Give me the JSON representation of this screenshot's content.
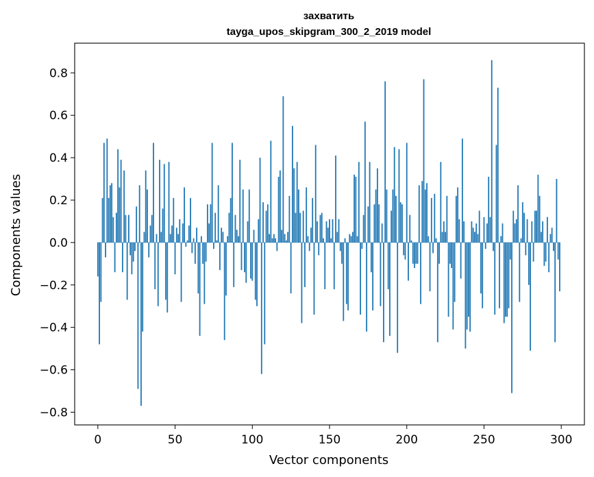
{
  "chart_data": {
    "type": "bar",
    "title": "захватить",
    "subtitle": "tayga_upos_skipgram_300_2_2019 model",
    "xlabel": "Vector components",
    "ylabel": "Components values",
    "xlim": [
      -15,
      315
    ],
    "ylim": [
      -0.86,
      0.94
    ],
    "xticks": [
      0,
      50,
      100,
      150,
      200,
      250,
      300
    ],
    "yticks": [
      -0.8,
      -0.6,
      -0.4,
      -0.2,
      0.0,
      0.2,
      0.4,
      0.6,
      0.8
    ],
    "ytick_labels": [
      "−0.8",
      "−0.6",
      "−0.4",
      "−0.2",
      "0.0",
      "0.2",
      "0.4",
      "0.6",
      "0.8"
    ],
    "bar_color": "#1f77b4",
    "x": [
      0,
      1,
      2,
      3,
      4,
      5,
      6,
      7,
      8,
      9,
      10,
      11,
      12,
      13,
      14,
      15,
      16,
      17,
      18,
      19,
      20,
      21,
      22,
      23,
      24,
      25,
      26,
      27,
      28,
      29,
      30,
      31,
      32,
      33,
      34,
      35,
      36,
      37,
      38,
      39,
      40,
      41,
      42,
      43,
      44,
      45,
      46,
      47,
      48,
      49,
      50,
      51,
      52,
      53,
      54,
      55,
      56,
      57,
      58,
      59,
      60,
      61,
      62,
      63,
      64,
      65,
      66,
      67,
      68,
      69,
      70,
      71,
      72,
      73,
      74,
      75,
      76,
      77,
      78,
      79,
      80,
      81,
      82,
      83,
      84,
      85,
      86,
      87,
      88,
      89,
      90,
      91,
      92,
      93,
      94,
      95,
      96,
      97,
      98,
      99,
      100,
      101,
      102,
      103,
      104,
      105,
      106,
      107,
      108,
      109,
      110,
      111,
      112,
      113,
      114,
      115,
      116,
      117,
      118,
      119,
      120,
      121,
      122,
      123,
      124,
      125,
      126,
      127,
      128,
      129,
      130,
      131,
      132,
      133,
      134,
      135,
      136,
      137,
      138,
      139,
      140,
      141,
      142,
      143,
      144,
      145,
      146,
      147,
      148,
      149,
      150,
      151,
      152,
      153,
      154,
      155,
      156,
      157,
      158,
      159,
      160,
      161,
      162,
      163,
      164,
      165,
      166,
      167,
      168,
      169,
      170,
      171,
      172,
      173,
      174,
      175,
      176,
      177,
      178,
      179,
      180,
      181,
      182,
      183,
      184,
      185,
      186,
      187,
      188,
      189,
      190,
      191,
      192,
      193,
      194,
      195,
      196,
      197,
      198,
      199,
      200,
      201,
      202,
      203,
      204,
      205,
      206,
      207,
      208,
      209,
      210,
      211,
      212,
      213,
      214,
      215,
      216,
      217,
      218,
      219,
      220,
      221,
      222,
      223,
      224,
      225,
      226,
      227,
      228,
      229,
      230,
      231,
      232,
      233,
      234,
      235,
      236,
      237,
      238,
      239,
      240,
      241,
      242,
      243,
      244,
      245,
      246,
      247,
      248,
      249,
      250,
      251,
      252,
      253,
      254,
      255,
      256,
      257,
      258,
      259,
      260,
      261,
      262,
      263,
      264,
      265,
      266,
      267,
      268,
      269,
      270,
      271,
      272,
      273,
      274,
      275,
      276,
      277,
      278,
      279,
      280,
      281,
      282,
      283,
      284,
      285,
      286,
      287,
      288,
      289,
      290,
      291,
      292,
      293,
      294,
      295,
      296,
      297,
      298,
      299
    ],
    "values": [
      -0.16,
      -0.48,
      -0.28,
      0.21,
      0.47,
      -0.07,
      0.49,
      0.21,
      0.27,
      0.28,
      0.12,
      -0.14,
      0.14,
      0.44,
      0.26,
      0.39,
      -0.14,
      0.34,
      0.13,
      -0.27,
      0.13,
      -0.06,
      -0.15,
      -0.09,
      -0.04,
      0.17,
      -0.69,
      0.27,
      -0.77,
      -0.42,
      0.05,
      0.34,
      0.25,
      -0.07,
      0.08,
      0.13,
      0.47,
      -0.22,
      0.04,
      -0.3,
      0.39,
      0.05,
      0.16,
      0.37,
      -0.27,
      -0.33,
      0.38,
      0.04,
      0.08,
      0.21,
      -0.15,
      0.07,
      0.04,
      0.11,
      -0.28,
      0.09,
      0.26,
      -0.02,
      0.01,
      0.08,
      0.21,
      -0.05,
      0.02,
      -0.1,
      0.07,
      -0.24,
      -0.44,
      0.03,
      -0.1,
      -0.29,
      -0.09,
      0.18,
      0.09,
      0.18,
      0.47,
      -0.03,
      0.14,
      0.01,
      0.27,
      -0.13,
      0.07,
      0.05,
      -0.46,
      -0.25,
      0.03,
      0.14,
      0.21,
      0.47,
      -0.21,
      0.13,
      0.06,
      0.03,
      0.39,
      -0.13,
      0.25,
      -0.14,
      -0.19,
      0.1,
      0.25,
      -0.17,
      -0.18,
      0.06,
      -0.27,
      -0.3,
      0.11,
      0.4,
      -0.62,
      0.19,
      -0.48,
      0.15,
      0.18,
      0.04,
      0.48,
      0.02,
      0.04,
      0.02,
      -0.04,
      0.31,
      0.34,
      0.06,
      0.69,
      0.04,
      0.01,
      0.05,
      0.22,
      -0.24,
      0.55,
      0.35,
      0.14,
      0.38,
      0.25,
      0.14,
      -0.38,
      0.15,
      -0.21,
      0.26,
      0.03,
      -0.04,
      0.07,
      0.21,
      -0.34,
      0.46,
      0.1,
      -0.06,
      0.13,
      0.14,
      0.02,
      -0.22,
      0.1,
      0.07,
      0.11,
      0.02,
      0.11,
      -0.22,
      0.41,
      0.05,
      0.11,
      -0.04,
      -0.1,
      -0.37,
      0.02,
      -0.29,
      -0.32,
      0.04,
      0.03,
      0.05,
      0.32,
      0.31,
      0.03,
      0.38,
      -0.34,
      -0.03,
      0.13,
      0.57,
      -0.42,
      0.17,
      0.38,
      -0.14,
      -0.32,
      0.18,
      0.25,
      0.35,
      0.18,
      -0.3,
      0.09,
      -0.47,
      0.76,
      0.25,
      -0.22,
      -0.44,
      0.15,
      0.25,
      0.45,
      0.22,
      -0.52,
      0.44,
      0.19,
      0.18,
      -0.06,
      -0.08,
      0.47,
      -0.18,
      0.13,
      0.01,
      -0.1,
      -0.12,
      -0.1,
      -0.1,
      0.27,
      -0.29,
      0.29,
      0.77,
      0.25,
      0.28,
      0.03,
      -0.23,
      0.21,
      -0.05,
      0.23,
      0.02,
      -0.47,
      -0.1,
      0.38,
      0.05,
      0.1,
      0.05,
      0.22,
      -0.35,
      -0.1,
      -0.12,
      -0.41,
      -0.28,
      0.22,
      0.26,
      0.11,
      -0.17,
      0.49,
      0.1,
      -0.5,
      -0.41,
      -0.35,
      -0.42,
      0.1,
      0.07,
      0.05,
      0.09,
      0.04,
      0.15,
      -0.24,
      -0.31,
      0.12,
      -0.03,
      0.09,
      0.31,
      0.12,
      0.86,
      -0.04,
      -0.34,
      0.46,
      0.73,
      -0.31,
      0.03,
      0.09,
      -0.38,
      -0.35,
      -0.35,
      -0.31,
      -0.08,
      -0.71,
      0.15,
      0.09,
      0.11,
      0.27,
      -0.28,
      0.02,
      0.19,
      0.14,
      -0.06,
      0.11,
      -0.2,
      -0.51,
      0.1,
      -0.09,
      0.15,
      0.15,
      0.32,
      0.22,
      0.05,
      0.1,
      -0.11,
      -0.09,
      0.12,
      -0.14,
      0.04,
      0.07,
      -0.04,
      -0.47,
      0.3,
      -0.08,
      -0.23
    ]
  }
}
